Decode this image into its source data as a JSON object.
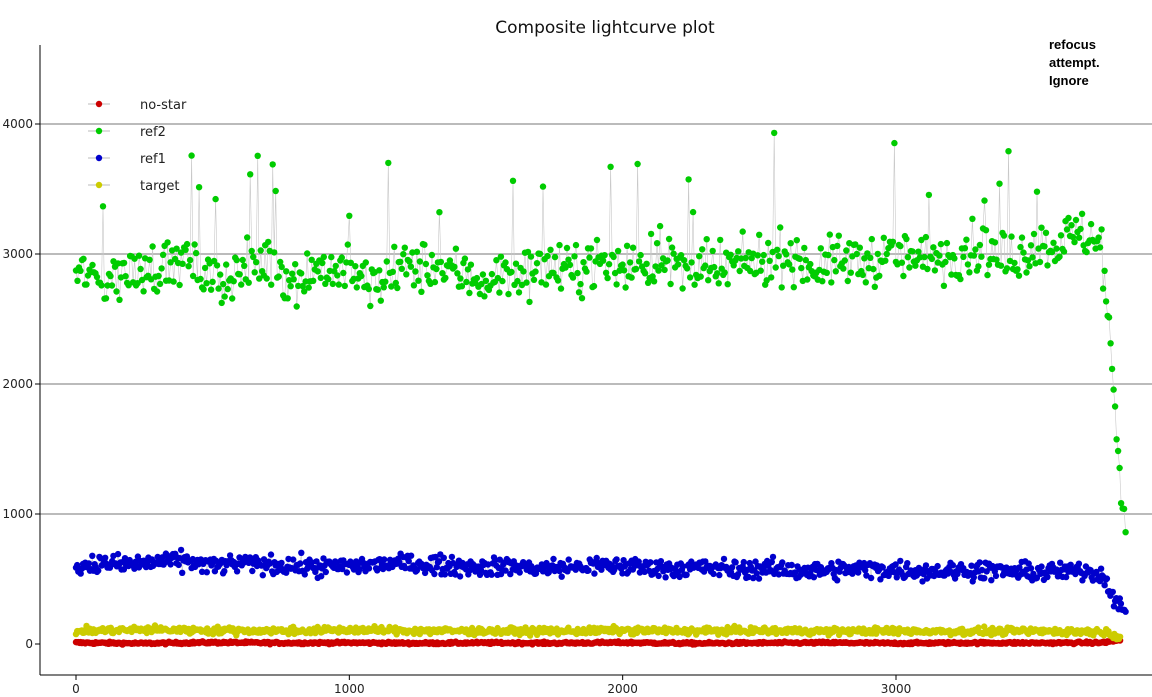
{
  "chart_data": {
    "type": "scatter",
    "title": "Composite lightcurve plot",
    "xlabel": "",
    "ylabel": "",
    "xlim": [
      0,
      3850
    ],
    "ylim": [
      -150,
      4600
    ],
    "x_ticks": [
      0,
      1000,
      2000,
      3000
    ],
    "y_ticks": [
      0,
      1000,
      2000,
      3000,
      4000
    ],
    "grid": "horizontal",
    "legend_position": "top-left",
    "annotation": {
      "lines": [
        "refocus",
        "attempt.",
        "Ignore"
      ],
      "x": 3700,
      "y": 4450
    },
    "series": [
      {
        "name": "no-star",
        "color": "#cc0000",
        "connected": true,
        "x": [
          0,
          250,
          500,
          750,
          1000,
          1250,
          1500,
          1750,
          2000,
          2250,
          2500,
          2750,
          3000,
          3250,
          3500,
          3750,
          3820
        ],
        "y": [
          10,
          5,
          12,
          8,
          10,
          6,
          9,
          7,
          11,
          5,
          8,
          10,
          6,
          9,
          8,
          10,
          30
        ]
      },
      {
        "name": "ref2",
        "color": "#00cc00",
        "connected": true,
        "x": [
          0,
          100,
          200,
          300,
          400,
          500,
          600,
          700,
          800,
          900,
          1000,
          1100,
          1200,
          1300,
          1400,
          1500,
          1600,
          1700,
          1800,
          1900,
          2000,
          2100,
          2200,
          2300,
          2400,
          2500,
          2600,
          2700,
          2800,
          2900,
          3000,
          3100,
          3200,
          3300,
          3400,
          3500,
          3600,
          3700,
          3750,
          3780,
          3800,
          3820,
          3840
        ],
        "y": [
          2850,
          2800,
          2850,
          2900,
          2950,
          2800,
          2850,
          2950,
          2800,
          2900,
          2850,
          2750,
          2900,
          2900,
          2850,
          2800,
          2850,
          2900,
          2850,
          2950,
          2900,
          2950,
          2900,
          2850,
          2900,
          2950,
          3000,
          2900,
          2950,
          2950,
          3000,
          2950,
          3000,
          3050,
          2950,
          3050,
          3100,
          3150,
          3100,
          2400,
          1800,
          1300,
          900
        ]
      },
      {
        "name": "ref1",
        "color": "#0000cc",
        "connected": true,
        "x": [
          0,
          100,
          200,
          300,
          400,
          500,
          600,
          700,
          800,
          900,
          1000,
          1100,
          1200,
          1300,
          1400,
          1500,
          1600,
          1700,
          1800,
          1900,
          2000,
          2100,
          2200,
          2300,
          2400,
          2500,
          2600,
          2700,
          2800,
          2900,
          3000,
          3100,
          3200,
          3300,
          3400,
          3500,
          3600,
          3700,
          3750,
          3780,
          3800,
          3820,
          3840
        ],
        "y": [
          600,
          620,
          610,
          630,
          640,
          600,
          620,
          610,
          600,
          590,
          600,
          610,
          620,
          610,
          600,
          590,
          600,
          580,
          590,
          600,
          600,
          590,
          580,
          590,
          570,
          580,
          570,
          560,
          570,
          580,
          570,
          560,
          560,
          570,
          560,
          550,
          560,
          560,
          540,
          450,
          350,
          280,
          220
        ]
      },
      {
        "name": "target",
        "color": "#cccc00",
        "connected": true,
        "x": [
          0,
          250,
          500,
          750,
          1000,
          1250,
          1500,
          1750,
          2000,
          2250,
          2500,
          2750,
          3000,
          3250,
          3500,
          3750,
          3820
        ],
        "y": [
          100,
          110,
          105,
          100,
          108,
          102,
          100,
          98,
          104,
          100,
          102,
          98,
          100,
          97,
          99,
          95,
          60
        ]
      }
    ]
  }
}
